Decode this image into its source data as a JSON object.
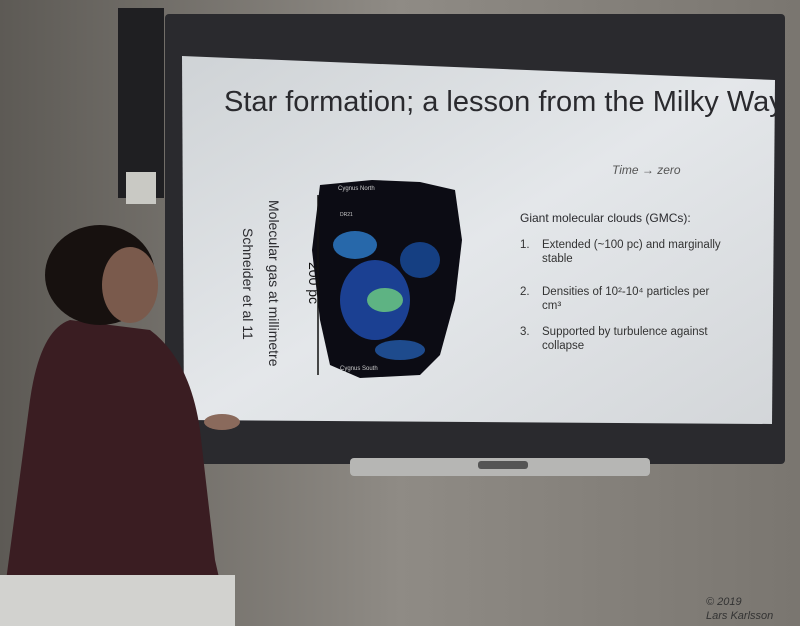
{
  "slide": {
    "title": "Star formation; a lesson from the Milky Way",
    "subtitle": "Time → zero",
    "figure_caption": [
      "Molecular gas at millimetre",
      "Schneider et al 11"
    ],
    "scale_label": "200 pc",
    "map_labels": [
      "Cygnus North",
      "DR21",
      "Cygnus South"
    ],
    "list_heading": "Giant molecular clouds (GMCs):",
    "items": [
      {
        "number": "1.",
        "text": "Extended (~100 pc) and marginally stable"
      },
      {
        "number": "2.",
        "text": "Densities of 10²-10⁴ particles per cm³"
      },
      {
        "number": "3.",
        "text": "Supported by turbulence against collapse"
      }
    ]
  },
  "watermark": {
    "year": "© 2019",
    "author": "Lars Karlsson"
  }
}
